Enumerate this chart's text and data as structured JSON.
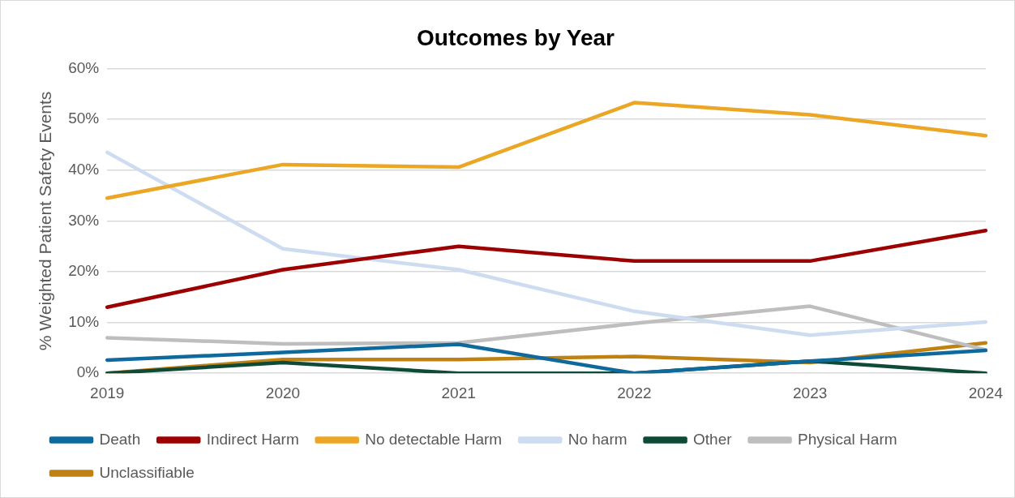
{
  "chart_data": {
    "type": "line",
    "title": "Outcomes by Year",
    "ylabel": "% Weighted Patient Safety Events",
    "categories": [
      "2019",
      "2020",
      "2021",
      "2022",
      "2023",
      "2024"
    ],
    "series": [
      {
        "name": "Death",
        "color": "#0e6a9c",
        "values": [
          2.6,
          4.1,
          5.7,
          0,
          2.4,
          4.5
        ]
      },
      {
        "name": "Indirect Harm",
        "color": "#9c0000",
        "values": [
          13.0,
          20.4,
          25.0,
          22.1,
          22.1,
          28.1
        ]
      },
      {
        "name": "No detectable Harm",
        "color": "#eba625",
        "values": [
          34.5,
          41.1,
          40.6,
          53.3,
          50.9,
          46.8
        ]
      },
      {
        "name": "No harm",
        "color": "#cddcf0",
        "values": [
          43.5,
          24.5,
          20.4,
          12.2,
          7.5,
          10.1
        ]
      },
      {
        "name": "Other",
        "color": "#0d4a38",
        "values": [
          0,
          2.1,
          0,
          0,
          2.4,
          0
        ]
      },
      {
        "name": "Physical Harm",
        "color": "#bebebe",
        "values": [
          7.0,
          5.8,
          6.0,
          9.8,
          13.2,
          4.6
        ]
      },
      {
        "name": "Unclassifiable",
        "color": "#bf8112",
        "values": [
          0,
          2.7,
          2.7,
          3.3,
          2.1,
          6.0
        ]
      }
    ],
    "ylim": [
      0,
      60
    ],
    "yticks": [
      {
        "value": 0,
        "label": "0%"
      },
      {
        "value": 10,
        "label": "10%"
      },
      {
        "value": 20,
        "label": "20%"
      },
      {
        "value": 30,
        "label": "30%"
      },
      {
        "value": 40,
        "label": "40%"
      },
      {
        "value": 50,
        "label": "50%"
      },
      {
        "value": 60,
        "label": "60%"
      }
    ],
    "grid": "y",
    "legend": "bottom",
    "marker": "none",
    "line_style": "solid"
  }
}
